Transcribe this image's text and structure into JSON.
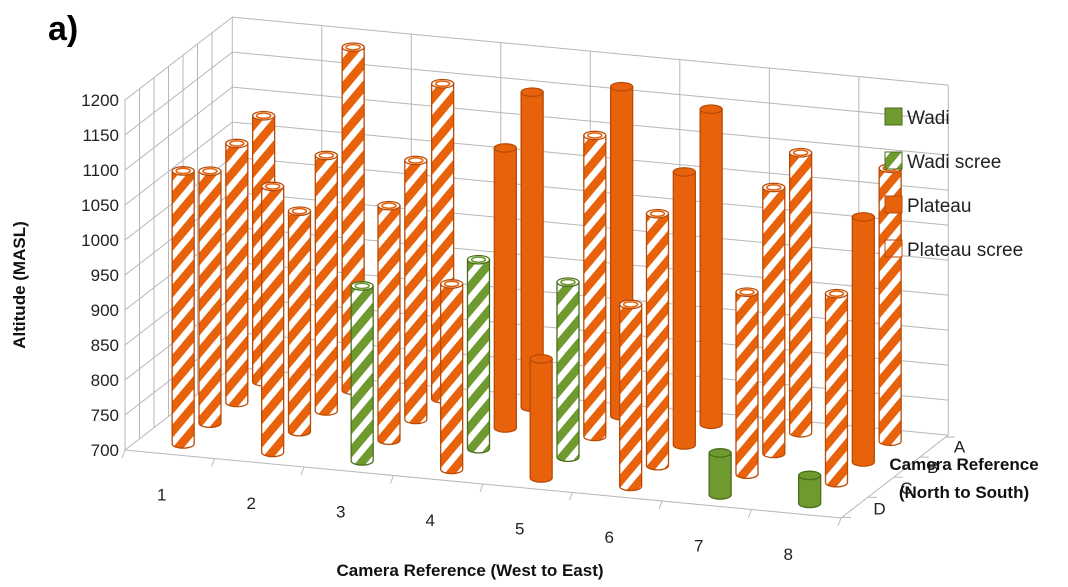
{
  "panel_label": "a)",
  "colors": {
    "plateau": "#E7620A",
    "plateau_dark": "#B94A06",
    "wadi": "#6E9A2F",
    "wadi_dark": "#4B6E1C",
    "grid": "#b7b7b7"
  },
  "chart_data": {
    "type": "bar3d",
    "title": "",
    "ylabel": "Altitude (MASL)",
    "xlabel": "Camera Reference (West to East)",
    "zlabel_line1": "Camera Reference",
    "zlabel_line2": "(North to South)",
    "ylim": [
      700,
      1200
    ],
    "yticks": [
      700,
      750,
      800,
      850,
      900,
      950,
      1000,
      1050,
      1100,
      1150,
      1200
    ],
    "x_categories": [
      "1",
      "2",
      "3",
      "4",
      "5",
      "6",
      "7",
      "8"
    ],
    "z_categories": [
      "A",
      "B",
      "C",
      "D"
    ],
    "legend": [
      {
        "name": "Wadi",
        "key": "wadi",
        "striped": false
      },
      {
        "name": "Wadi scree",
        "key": "wadi",
        "striped": true
      },
      {
        "name": "Plateau",
        "key": "plateau",
        "striped": false
      },
      {
        "name": "Plateau scree",
        "key": "plateau",
        "striped": true
      }
    ],
    "bars": [
      {
        "x": "1",
        "z": "A",
        "value": 1080,
        "series": "Plateau scree"
      },
      {
        "x": "1",
        "z": "B",
        "value": 1070,
        "series": "Plateau scree"
      },
      {
        "x": "1",
        "z": "C",
        "value": 1060,
        "series": "Plateau scree"
      },
      {
        "x": "1",
        "z": "D",
        "value": 1090,
        "series": "Plateau scree"
      },
      {
        "x": "2",
        "z": "A",
        "value": 1190,
        "series": "Plateau scree"
      },
      {
        "x": "2",
        "z": "B",
        "value": 1065,
        "series": "Plateau scree"
      },
      {
        "x": "2",
        "z": "C",
        "value": 1015,
        "series": "Plateau scree"
      },
      {
        "x": "2",
        "z": "D",
        "value": 1080,
        "series": "Plateau scree"
      },
      {
        "x": "3",
        "z": "A",
        "value": 1150,
        "series": "Plateau scree"
      },
      {
        "x": "3",
        "z": "B",
        "value": 1070,
        "series": "Plateau scree"
      },
      {
        "x": "3",
        "z": "C",
        "value": 1035,
        "series": "Plateau scree"
      },
      {
        "x": "3",
        "z": "D",
        "value": 950,
        "series": "Wadi scree"
      },
      {
        "x": "4",
        "z": "A",
        "value": 1150,
        "series": "Plateau"
      },
      {
        "x": "4",
        "z": "B",
        "value": 1100,
        "series": "Plateau"
      },
      {
        "x": "4",
        "z": "C",
        "value": 970,
        "series": "Wadi scree"
      },
      {
        "x": "4",
        "z": "D",
        "value": 965,
        "series": "Plateau scree"
      },
      {
        "x": "5",
        "z": "A",
        "value": 1170,
        "series": "Plateau"
      },
      {
        "x": "5",
        "z": "B",
        "value": 1130,
        "series": "Plateau scree"
      },
      {
        "x": "5",
        "z": "C",
        "value": 950,
        "series": "Wadi scree"
      },
      {
        "x": "5",
        "z": "D",
        "value": 870,
        "series": "Plateau"
      },
      {
        "x": "6",
        "z": "A",
        "value": 1150,
        "series": "Plateau"
      },
      {
        "x": "6",
        "z": "B",
        "value": 1090,
        "series": "Plateau"
      },
      {
        "x": "6",
        "z": "C",
        "value": 1060,
        "series": "Plateau scree"
      },
      {
        "x": "6",
        "z": "D",
        "value": 960,
        "series": "Plateau scree"
      },
      {
        "x": "7",
        "z": "A",
        "value": 1100,
        "series": "Plateau scree"
      },
      {
        "x": "7",
        "z": "B",
        "value": 1080,
        "series": "Plateau scree"
      },
      {
        "x": "7",
        "z": "C",
        "value": 960,
        "series": "Plateau scree"
      },
      {
        "x": "7",
        "z": "D",
        "value": 760,
        "series": "Wadi"
      },
      {
        "x": "8",
        "z": "A",
        "value": 1090,
        "series": "Plateau scree"
      },
      {
        "x": "8",
        "z": "B",
        "value": 1050,
        "series": "Plateau"
      },
      {
        "x": "8",
        "z": "C",
        "value": 970,
        "series": "Plateau scree"
      },
      {
        "x": "8",
        "z": "D",
        "value": 740,
        "series": "Wadi"
      }
    ]
  }
}
